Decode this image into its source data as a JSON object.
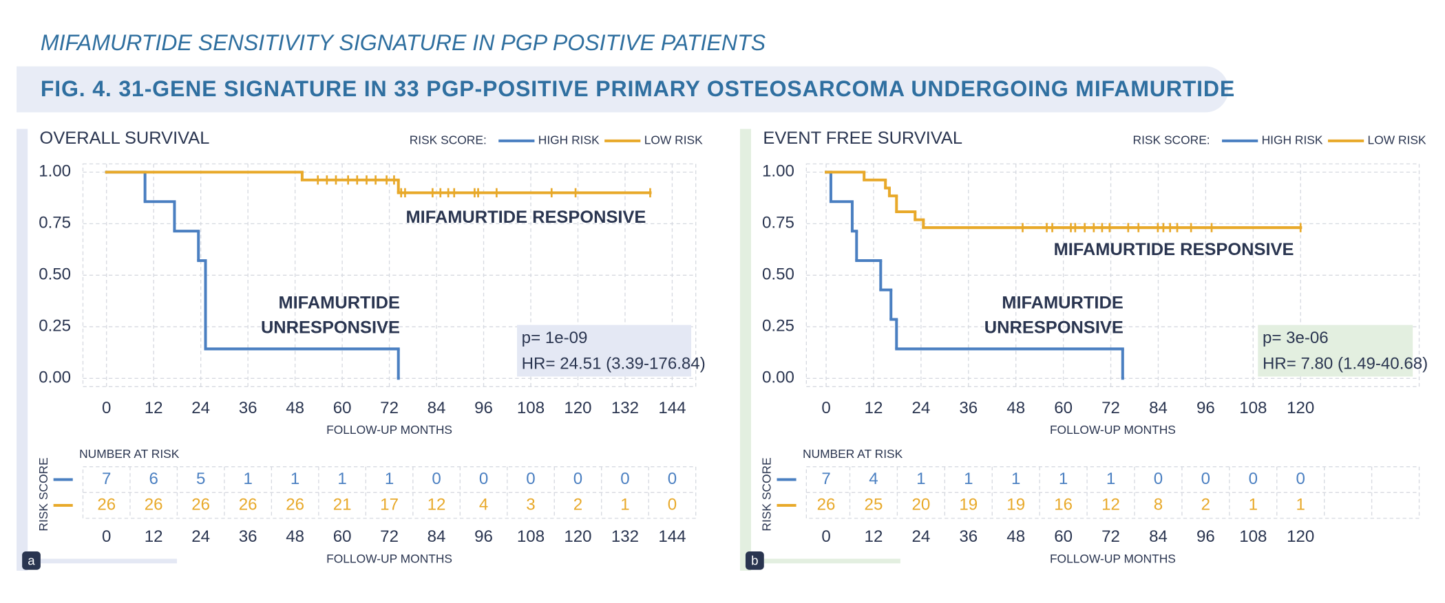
{
  "header": {
    "title": "MIFAMURTIDE SENSITIVITY SIGNATURE IN PGP POSITIVE PATIENTS",
    "figure": "FIG. 4.  31-GENE SIGNATURE IN 33 PGP-POSITIVE PRIMARY OSTEOSARCOMA UNDERGOING MIFAMURTIDE"
  },
  "chart_data": [
    {
      "type": "survival",
      "panel": "a",
      "title": "OVERALL SURVIVAL",
      "panel_color": "#e4e8f4",
      "legend_title": "RISK SCORE:",
      "xlabel": "FOLLOW-UP MONTHS",
      "xlim": [
        -6,
        150
      ],
      "xticks": [
        0,
        12,
        24,
        36,
        48,
        60,
        72,
        84,
        96,
        108,
        120,
        132,
        144
      ],
      "ylim": [
        -0.04,
        1.04
      ],
      "yticks": [
        {
          "value": 0,
          "label": "0.00"
        },
        {
          "value": 0.25,
          "label": "0.25"
        },
        {
          "value": 0.5,
          "label": "0.50"
        },
        {
          "value": 0.75,
          "label": "0.75"
        },
        {
          "value": 1,
          "label": "1.00"
        }
      ],
      "grid": true,
      "series": [
        {
          "name": "HIGH RISK",
          "color": "#4a7fc1",
          "x": [
            0,
            9.8,
            17.3,
            23.4,
            25.2,
            74.3
          ],
          "values": [
            1,
            0.857,
            0.714,
            0.571,
            0.143,
            0
          ],
          "censored": []
        },
        {
          "name": "LOW RISK",
          "color": "#e8a92a",
          "x": [
            0,
            49.8,
            74.3,
            138.4
          ],
          "values": [
            1,
            0.962,
            0.9,
            0.9
          ],
          "censored": [
            53.8,
            56.1,
            58.4,
            61.5,
            63.8,
            66.2,
            68.5,
            71.3,
            73.2,
            75,
            76,
            83,
            85,
            87,
            88.5,
            93.7,
            94.6,
            99.3,
            113.3,
            119.4,
            138.4
          ]
        }
      ],
      "annotations": [
        "MIFAMURTIDE RESPONSIVE",
        "MIFAMURTIDE",
        "UNRESPONSIVE"
      ],
      "stats": [
        "p= 1e-09",
        "HR= 24.51 (3.39-176.84)"
      ],
      "at_risk": {
        "title": "NUMBER AT RISK",
        "ylabel": "RISK SCORE",
        "rows": [
          [
            7,
            6,
            5,
            1,
            1,
            1,
            1,
            0,
            0,
            0,
            0,
            0,
            0
          ],
          [
            26,
            26,
            26,
            26,
            26,
            21,
            17,
            12,
            4,
            3,
            2,
            1,
            0
          ]
        ]
      }
    },
    {
      "type": "survival",
      "panel": "b",
      "title": "EVENT FREE SURVIVAL",
      "panel_color": "#e3efe0",
      "legend_title": "RISK SCORE:",
      "xlabel": "FOLLOW-UP MONTHS",
      "xlim": [
        -5,
        150
      ],
      "xticks": [
        0,
        12,
        24,
        36,
        48,
        60,
        72,
        84,
        96,
        108,
        120
      ],
      "ylim": [
        -0.04,
        1.04
      ],
      "yticks": [
        {
          "value": 0,
          "label": "0.00"
        },
        {
          "value": 0.25,
          "label": "0.25"
        },
        {
          "value": 0.5,
          "label": "0.50"
        },
        {
          "value": 0.75,
          "label": "0.75"
        },
        {
          "value": 1,
          "label": "1.00"
        }
      ],
      "grid": true,
      "series": [
        {
          "name": "HIGH RISK",
          "color": "#4a7fc1",
          "x": [
            0,
            1.2,
            6.6,
            7.7,
            13.8,
            16.4,
            17.8,
            75
          ],
          "values": [
            1,
            0.857,
            0.714,
            0.571,
            0.429,
            0.286,
            0.143,
            0
          ],
          "censored": []
        },
        {
          "name": "LOW RISK",
          "color": "#e8a92a",
          "x": [
            0,
            9.6,
            15,
            16,
            17.8,
            22.5,
            24.6,
            120
          ],
          "values": [
            1,
            0.962,
            0.923,
            0.885,
            0.808,
            0.769,
            0.731,
            0.731
          ],
          "censored": [
            49.7,
            55.8,
            57.2,
            61.9,
            63,
            65.4,
            67.7,
            69.8,
            71.7,
            76.4,
            79,
            83.9,
            85.3,
            87,
            88.8,
            92.3,
            97.5,
            120
          ]
        }
      ],
      "annotations": [
        "MIFAMURTIDE RESPONSIVE",
        "MIFAMURTIDE",
        "UNRESPONSIVE"
      ],
      "stats": [
        "p= 3e-06",
        "HR= 7.80 (1.49-40.68)"
      ],
      "at_risk": {
        "title": "NUMBER AT RISK",
        "ylabel": "RISK SCORE",
        "rows": [
          [
            7,
            4,
            1,
            1,
            1,
            1,
            1,
            0,
            0,
            0,
            0
          ],
          [
            26,
            25,
            20,
            19,
            19,
            16,
            12,
            8,
            2,
            1,
            1
          ]
        ]
      }
    }
  ]
}
